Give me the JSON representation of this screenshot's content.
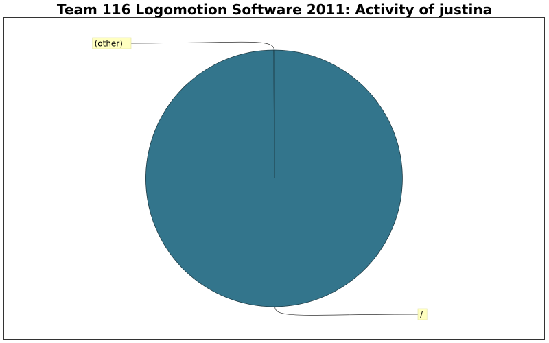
{
  "chart_data": {
    "type": "pie",
    "title": "Team 116 Logomotion Software 2011: Activity of justina",
    "slices": [
      {
        "label": "/",
        "value": 99.9,
        "color": "#33758c"
      },
      {
        "label": "(other)",
        "value": 0.1,
        "color": "#33758c"
      }
    ],
    "label_box_color": "#ffffc0",
    "legend": "none"
  }
}
